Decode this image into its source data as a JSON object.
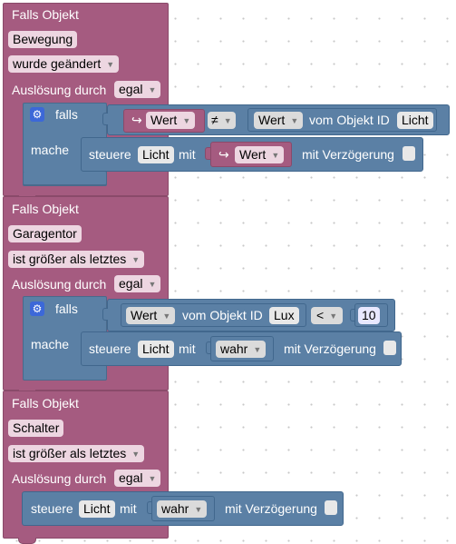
{
  "blocks": [
    {
      "header": "Falls Objekt",
      "object": "Bewegung",
      "condition": "wurde geändert",
      "trigger_label": "Auslösung durch",
      "trigger_value": "egal",
      "if_label": "falls",
      "do_label": "mache",
      "var_arrow": "↪",
      "var_name": "Wert",
      "operator": "≠",
      "value_field": "Wert",
      "of_object_label": "vom Objekt ID",
      "object_id": "Licht",
      "action_label": "steuere",
      "action_target": "Licht",
      "with_label": "mit",
      "action_value": "Wert",
      "delay_label": "mit Verzögerung"
    },
    {
      "header": "Falls Objekt",
      "object": "Garagentor",
      "condition": "ist größer als letztes",
      "trigger_label": "Auslösung durch",
      "trigger_value": "egal",
      "if_label": "falls",
      "do_label": "mache",
      "value_field": "Wert",
      "of_object_label": "vom Objekt ID",
      "object_id": "Lux",
      "operator": "<",
      "compare_number": "10",
      "action_label": "steuere",
      "action_target": "Licht",
      "with_label": "mit",
      "action_value": "wahr",
      "delay_label": "mit Verzögerung"
    },
    {
      "header": "Falls Objekt",
      "object": "Schalter",
      "condition": "ist größer als letztes",
      "trigger_label": "Auslösung durch",
      "trigger_value": "egal",
      "action_label": "steuere",
      "action_target": "Licht",
      "with_label": "mit",
      "action_value": "wahr",
      "delay_label": "mit Verzögerung"
    }
  ],
  "icons": {
    "gear": "gear-icon",
    "dropdown": "triangle-down",
    "variable": "variable-arrow-icon"
  },
  "colors": {
    "trigger_block": "#a55b80",
    "logic_block": "#5b80a5",
    "field_pink": "#edd6e1",
    "field_grey": "#dbdbdb",
    "gear": "#3c68d8"
  }
}
